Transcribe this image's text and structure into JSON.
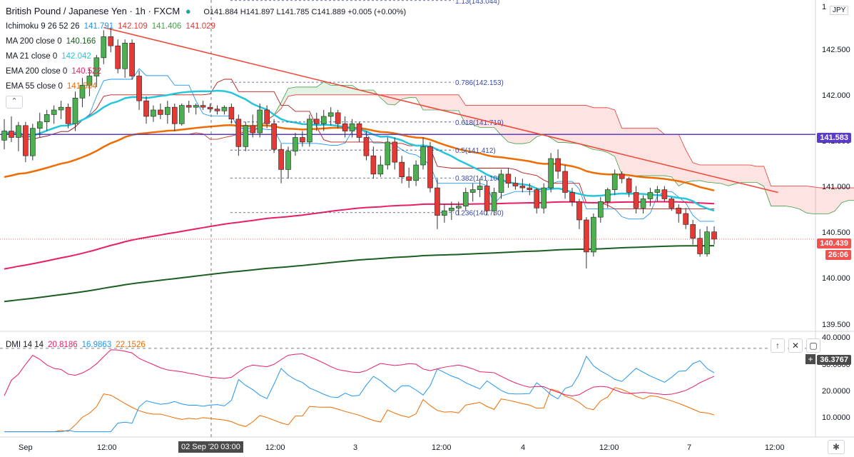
{
  "header": {
    "symbol": "British Pound / Japanese Yen · 1h · FXCM",
    "open": "O141.884",
    "high": "H141.897",
    "low": "L141.785",
    "close": "C141.889",
    "change": "+0.005 (+0.00%)"
  },
  "indicators": [
    {
      "label": "Ichimoku 9 26 52 26",
      "values": [
        {
          "v": "141.791",
          "color": "#2196f3"
        },
        {
          "v": "142.109",
          "color": "#e53935"
        },
        {
          "v": "141.406",
          "color": "#43a047"
        },
        {
          "v": "141.029",
          "color": "#e53935"
        }
      ]
    },
    {
      "label": "MA 200 close 0",
      "values": [
        {
          "v": "140.166",
          "color": "#1b5e20"
        }
      ]
    },
    {
      "label": "MA 21 close 0",
      "values": [
        {
          "v": "142.042",
          "color": "#26c6da"
        }
      ]
    },
    {
      "label": "EMA 200 close 0",
      "values": [
        {
          "v": "140.522",
          "color": "#e91e63"
        }
      ]
    },
    {
      "label": "EMA 55 close 0",
      "values": [
        {
          "v": "141.584",
          "color": "#ef6c00"
        }
      ]
    }
  ],
  "dmi": {
    "label": "DMI 14 14",
    "values": [
      {
        "v": "20.8186",
        "color": "#e91e63"
      },
      {
        "v": "16.9863",
        "color": "#2196f3"
      },
      {
        "v": "22.1526",
        "color": "#ef6c00"
      }
    ],
    "current_tag": "36.3767"
  },
  "currency_badge": "JPY",
  "price_tags": {
    "hline": "141.583",
    "last": "140.439",
    "countdown": "26:06"
  },
  "time_highlight": "02 Sep '20   03:00",
  "buttons": {
    "up": "↑",
    "close": "✕",
    "maximize": "▢",
    "add": "+",
    "gear": "✱"
  },
  "chart_data": {
    "type": "candlestick",
    "price_axis": {
      "range": [
        139.45,
        143.05
      ],
      "ticks": [
        "142.500",
        "142.000",
        "141.500",
        "141.000",
        "140.500",
        "140.000",
        "139.500"
      ],
      "top_partial": "1"
    },
    "x_axis_ticks": [
      "Sep",
      "12:00",
      "02 Sep '20",
      "03:00",
      "12:00",
      "3",
      "12:00",
      "4",
      "12:00",
      "7",
      "12:00"
    ],
    "fib_levels": [
      {
        "label": "1.13(143.044)",
        "price": 143.044
      },
      {
        "label": "0.786(142.153)",
        "price": 142.153
      },
      {
        "label": "0.618(141.719)",
        "price": 141.719
      },
      {
        "label": "0.5(141.412)",
        "price": 141.412
      },
      {
        "label": "0.382(141.108)",
        "price": 141.108
      },
      {
        "label": "0.236(140.730)",
        "price": 140.73
      }
    ],
    "horizontal_line": 141.583,
    "candles": [
      [
        141.52,
        141.75,
        141.42,
        141.62
      ],
      [
        141.62,
        141.78,
        141.5,
        141.55
      ],
      [
        141.55,
        141.72,
        141.4,
        141.68
      ],
      [
        141.68,
        141.72,
        141.28,
        141.35
      ],
      [
        141.35,
        141.7,
        141.3,
        141.65
      ],
      [
        141.65,
        141.82,
        141.55,
        141.72
      ],
      [
        141.72,
        141.85,
        141.62,
        141.8
      ],
      [
        141.8,
        141.9,
        141.7,
        141.85
      ],
      [
        141.85,
        141.95,
        141.75,
        141.88
      ],
      [
        141.88,
        141.92,
        141.65,
        141.7
      ],
      [
        141.7,
        142.05,
        141.62,
        141.98
      ],
      [
        141.98,
        142.2,
        141.88,
        142.12
      ],
      [
        142.12,
        142.3,
        142.0,
        142.22
      ],
      [
        142.22,
        142.45,
        142.1,
        142.42
      ],
      [
        142.42,
        142.72,
        142.35,
        142.65
      ],
      [
        142.65,
        142.75,
        142.48,
        142.55
      ],
      [
        142.55,
        142.62,
        142.25,
        142.3
      ],
      [
        142.3,
        142.62,
        142.2,
        142.58
      ],
      [
        142.58,
        142.62,
        142.18,
        142.22
      ],
      [
        142.22,
        142.28,
        141.85,
        141.95
      ],
      [
        141.95,
        142.0,
        141.7,
        141.78
      ],
      [
        141.78,
        141.9,
        141.72,
        141.85
      ],
      [
        141.85,
        141.92,
        141.75,
        141.8
      ],
      [
        141.8,
        141.95,
        141.7,
        141.88
      ],
      [
        141.88,
        141.92,
        141.62,
        141.7
      ],
      [
        141.7,
        141.92,
        141.68,
        141.9
      ],
      [
        141.9,
        141.95,
        141.82,
        141.88
      ],
      [
        141.88,
        141.92,
        141.8,
        141.9
      ],
      [
        141.9,
        141.95,
        141.85,
        141.88
      ],
      [
        141.88,
        141.92,
        141.82,
        141.86
      ],
      [
        141.86,
        141.9,
        141.8,
        141.84
      ],
      [
        141.84,
        141.9,
        141.8,
        141.88
      ],
      [
        141.88,
        141.92,
        141.7,
        141.75
      ],
      [
        141.75,
        141.8,
        141.35,
        141.45
      ],
      [
        141.45,
        141.72,
        141.4,
        141.68
      ],
      [
        141.68,
        141.8,
        141.55,
        141.6
      ],
      [
        141.6,
        141.92,
        141.55,
        141.85
      ],
      [
        141.85,
        141.9,
        141.65,
        141.7
      ],
      [
        141.7,
        141.75,
        141.38,
        141.42
      ],
      [
        141.42,
        141.48,
        141.05,
        141.2
      ],
      [
        141.2,
        141.45,
        141.1,
        141.4
      ],
      [
        141.4,
        141.6,
        141.35,
        141.55
      ],
      [
        141.55,
        141.62,
        141.45,
        141.5
      ],
      [
        141.5,
        141.8,
        141.45,
        141.75
      ],
      [
        141.75,
        141.82,
        141.62,
        141.7
      ],
      [
        141.7,
        141.85,
        141.62,
        141.78
      ],
      [
        141.78,
        141.88,
        141.68,
        141.82
      ],
      [
        141.82,
        141.85,
        141.65,
        141.7
      ],
      [
        141.7,
        141.78,
        141.55,
        141.62
      ],
      [
        141.62,
        141.75,
        141.55,
        141.7
      ],
      [
        141.7,
        141.72,
        141.5,
        141.55
      ],
      [
        141.55,
        141.62,
        141.3,
        141.35
      ],
      [
        141.35,
        141.45,
        141.1,
        141.15
      ],
      [
        141.15,
        141.35,
        141.12,
        141.25
      ],
      [
        141.25,
        141.55,
        141.2,
        141.5
      ],
      [
        141.5,
        141.55,
        141.2,
        141.28
      ],
      [
        141.28,
        141.35,
        141.05,
        141.12
      ],
      [
        141.12,
        141.22,
        141.0,
        141.08
      ],
      [
        141.08,
        141.3,
        141.02,
        141.25
      ],
      [
        141.25,
        141.55,
        141.2,
        141.45
      ],
      [
        141.45,
        141.5,
        140.95,
        141.0
      ],
      [
        141.0,
        141.1,
        140.55,
        140.7
      ],
      [
        140.7,
        140.82,
        140.62,
        140.75
      ],
      [
        140.75,
        140.85,
        140.65,
        140.78
      ],
      [
        140.78,
        140.85,
        140.7,
        140.8
      ],
      [
        140.8,
        141.0,
        140.75,
        140.95
      ],
      [
        140.95,
        141.05,
        140.85,
        140.98
      ],
      [
        140.98,
        141.1,
        140.9,
        141.02
      ],
      [
        141.02,
        141.08,
        140.7,
        140.75
      ],
      [
        140.75,
        141.0,
        140.7,
        140.95
      ],
      [
        140.95,
        141.2,
        140.88,
        141.15
      ],
      [
        141.15,
        141.22,
        141.0,
        141.05
      ],
      [
        141.05,
        141.12,
        140.98,
        141.02
      ],
      [
        141.02,
        141.1,
        140.95,
        141.0
      ],
      [
        141.0,
        141.05,
        140.92,
        140.98
      ],
      [
        140.98,
        141.0,
        140.72,
        140.78
      ],
      [
        140.78,
        141.05,
        140.72,
        141.0
      ],
      [
        141.0,
        141.38,
        140.95,
        141.32
      ],
      [
        141.32,
        141.42,
        141.1,
        141.18
      ],
      [
        141.18,
        141.25,
        140.88,
        140.95
      ],
      [
        140.95,
        141.0,
        140.8,
        140.85
      ],
      [
        140.85,
        140.88,
        140.55,
        140.65
      ],
      [
        140.65,
        140.68,
        140.12,
        140.3
      ],
      [
        140.3,
        140.72,
        140.25,
        140.68
      ],
      [
        140.68,
        140.9,
        140.62,
        140.85
      ],
      [
        140.85,
        141.0,
        140.78,
        140.98
      ],
      [
        140.98,
        141.2,
        140.92,
        141.15
      ],
      [
        141.15,
        141.18,
        141.05,
        141.1
      ],
      [
        141.1,
        141.12,
        140.9,
        140.95
      ],
      [
        140.95,
        141.02,
        140.72,
        140.78
      ],
      [
        140.78,
        140.92,
        140.72,
        140.88
      ],
      [
        140.88,
        141.0,
        140.8,
        140.95
      ],
      [
        140.95,
        141.02,
        140.85,
        140.98
      ],
      [
        140.98,
        141.02,
        140.85,
        140.88
      ],
      [
        140.88,
        140.9,
        140.75,
        140.78
      ],
      [
        140.78,
        140.82,
        140.62,
        140.72
      ],
      [
        140.72,
        140.78,
        140.55,
        140.6
      ],
      [
        140.6,
        140.65,
        140.38,
        140.45
      ],
      [
        140.45,
        140.55,
        140.25,
        140.28
      ],
      [
        140.28,
        140.58,
        140.25,
        140.52
      ],
      [
        140.52,
        140.58,
        140.38,
        140.44
      ]
    ],
    "dmi_axis": {
      "range": [
        3,
        42
      ],
      "ticks": [
        "40.0000",
        "30.0000",
        "20.0000",
        "10.0000"
      ]
    }
  }
}
